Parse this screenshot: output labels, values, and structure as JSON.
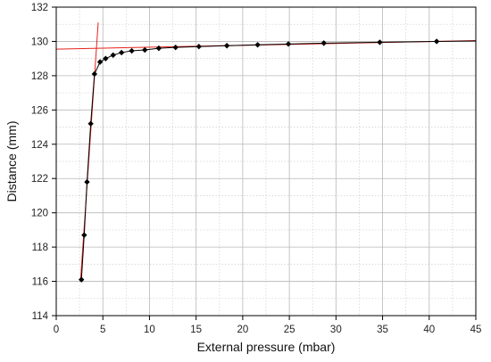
{
  "chart_data": {
    "type": "scatter",
    "title": "",
    "xlabel": "External pressure (mbar)",
    "ylabel": "Distance (mm)",
    "xlim": [
      0,
      45
    ],
    "ylim": [
      114,
      132
    ],
    "xticks": [
      0,
      5,
      10,
      15,
      20,
      25,
      30,
      35,
      40,
      45
    ],
    "yticks": [
      114,
      116,
      118,
      120,
      122,
      124,
      126,
      128,
      130,
      132
    ],
    "grid": true,
    "minor_grid": true,
    "legend": "none",
    "series": [
      {
        "marker": "diamond",
        "color": "#000000",
        "line": "connected",
        "x": [
          2.7,
          3.0,
          3.3,
          3.7,
          4.1,
          4.7,
          5.3,
          6.1,
          7.0,
          8.1,
          9.5,
          11.0,
          12.8,
          15.3,
          18.3,
          21.6,
          24.9,
          28.7,
          34.7,
          40.8
        ],
        "y": [
          116.1,
          118.7,
          121.8,
          125.2,
          128.1,
          128.8,
          129.0,
          129.2,
          129.35,
          129.45,
          129.5,
          129.6,
          129.65,
          129.7,
          129.75,
          129.8,
          129.85,
          129.9,
          129.95,
          130.0
        ]
      }
    ],
    "fit_lines": [
      {
        "color": "#e8231c",
        "x": [
          2.6,
          4.5
        ],
        "y": [
          116.0,
          131.1
        ]
      },
      {
        "color": "#e8231c",
        "x": [
          0,
          45
        ],
        "y": [
          129.55,
          130.05
        ]
      }
    ]
  }
}
